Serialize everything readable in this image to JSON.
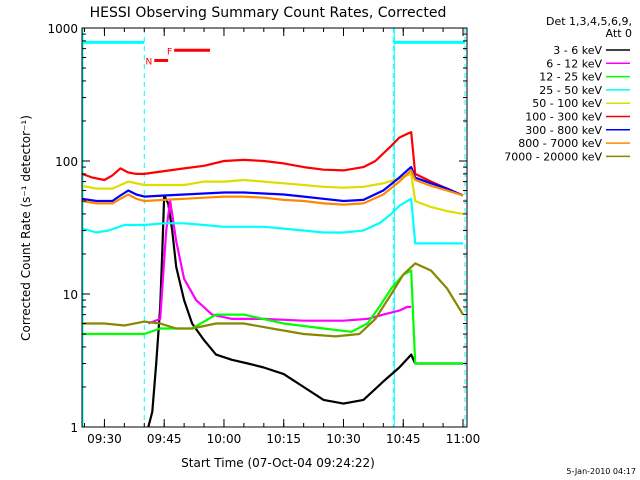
{
  "chart_data": {
    "type": "line",
    "title": "HESSI Observing Summary Count Rates, Corrected",
    "xlabel": "Start Time (07-Oct-04 09:24:22)",
    "ylabel": "Corrected Count Rate (s⁻¹ detector⁻¹)",
    "yscale": "log",
    "ylim": [
      1,
      1000
    ],
    "y_ticks": [
      {
        "value": 1,
        "label": "1"
      },
      {
        "value": 10,
        "label": "10"
      },
      {
        "value": 100,
        "label": "100"
      },
      {
        "value": 1000,
        "label": "1000"
      }
    ],
    "xlim": [
      "09:24:22",
      "11:01:00"
    ],
    "x_ticks": [
      {
        "value": "09:30",
        "label": "09:30"
      },
      {
        "value": "09:45",
        "label": "09:45"
      },
      {
        "value": "10:00",
        "label": "10:00"
      },
      {
        "value": "10:15",
        "label": "10:15"
      },
      {
        "value": "10:30",
        "label": "10:30"
      },
      {
        "value": "10:45",
        "label": "10:45"
      },
      {
        "value": "11:00",
        "label": "11:00"
      }
    ],
    "legend_header": [
      "Det 1,3,4,5,6,9,",
      "Att 0"
    ],
    "legend_placement": "right",
    "footer_date": "5-Jan-2010 04:17",
    "flags": [
      {
        "label": "N",
        "color": "#ff0000",
        "start": "09:42:30",
        "end": "09:46:00",
        "y": 570
      },
      {
        "label": "F",
        "color": "#ff0000",
        "start": "09:47:30",
        "end": "09:56:30",
        "y": 680
      }
    ],
    "night_bars": [
      {
        "start": "09:24:22",
        "end": "09:40:00",
        "y": 780
      },
      {
        "start": "10:42:30",
        "end": "11:00:30",
        "y": 780
      }
    ],
    "night_boundaries": [
      "09:40:00",
      "10:42:30",
      "11:00:30"
    ],
    "solid_vlines": [
      "09:24:22",
      "10:42:30"
    ],
    "series": [
      {
        "name": "3 - 6 keV",
        "color": "#000000",
        "x": [
          "09:24:22",
          "09:40:00",
          "09:41:00",
          "09:42:00",
          "09:43:00",
          "09:44:00",
          "09:44:30",
          "09:45:00",
          "09:46:00",
          "09:47:00",
          "09:48:00",
          "09:50:00",
          "09:52:00",
          "09:55:00",
          "09:58:00",
          "10:02:00",
          "10:06:00",
          "10:10:00",
          "10:15:00",
          "10:20:00",
          "10:25:00",
          "10:30:00",
          "10:35:00",
          "10:40:00",
          "10:44:00",
          "10:47:00",
          "10:48:00",
          "10:52:00",
          "10:56:00",
          "11:00:00"
        ],
        "values": [
          null,
          null,
          1,
          1.3,
          3,
          8,
          20,
          55,
          48,
          30,
          16,
          9,
          6,
          4.5,
          3.5,
          3.2,
          3,
          2.8,
          2.5,
          2,
          1.6,
          1.5,
          1.6,
          2.2,
          2.8,
          3.5,
          3,
          3,
          3,
          3
        ]
      },
      {
        "name": "6 - 12 keV",
        "color": "#ff00ff",
        "x": [
          "09:24:22",
          "09:40:00",
          "09:41:00",
          "09:44:00",
          "09:45:30",
          "09:46:30",
          "09:48:00",
          "09:50:00",
          "09:53:00",
          "09:57:00",
          "10:02:00",
          "10:10:00",
          "10:20:00",
          "10:30:00",
          "10:36:00",
          "10:40:00",
          "10:44:00",
          "10:46:00",
          "10:47:00"
        ],
        "values": [
          null,
          null,
          6,
          6.5,
          30,
          50,
          25,
          13,
          9,
          7,
          6.5,
          6.5,
          6.3,
          6.3,
          6.5,
          7,
          7.5,
          8,
          8
        ]
      },
      {
        "name": "12 - 25 keV",
        "color": "#00ff00",
        "x": [
          "09:24:22",
          "09:30:00",
          "09:38:00",
          "09:40:00",
          "09:44:00",
          "09:48:00",
          "09:52:00",
          "09:58:00",
          "10:05:00",
          "10:15:00",
          "10:25:00",
          "10:32:00",
          "10:36:00",
          "10:39:00",
          "10:42:00",
          "10:45:00",
          "10:47:00",
          "10:48:00",
          "10:52:00",
          "10:56:00",
          "11:00:00"
        ],
        "values": [
          5,
          5,
          5,
          5,
          5.5,
          5.5,
          5.5,
          7,
          7,
          6,
          5.5,
          5.2,
          6,
          8,
          11,
          14,
          15,
          3,
          3,
          3,
          3
        ]
      },
      {
        "name": "25 - 50 keV",
        "color": "#00ffff",
        "x": [
          "09:24:22",
          "09:28:00",
          "09:31:00",
          "09:35:00",
          "09:40:00",
          "09:45:00",
          "09:50:00",
          "09:55:00",
          "10:00:00",
          "10:05:00",
          "10:10:00",
          "10:15:00",
          "10:20:00",
          "10:25:00",
          "10:30:00",
          "10:35:00",
          "10:39:00",
          "10:42:00",
          "10:44:00",
          "10:46:00",
          "10:47:00",
          "10:48:00",
          "10:52:00",
          "10:56:00",
          "11:00:00"
        ],
        "values": [
          31,
          29,
          30,
          33,
          33,
          34,
          34,
          33,
          32,
          32,
          32,
          31,
          30,
          29,
          29,
          30,
          34,
          40,
          46,
          50,
          52,
          24,
          24,
          24,
          24
        ]
      },
      {
        "name": "50 - 100 keV",
        "color": "#dddd00",
        "x": [
          "09:24:22",
          "09:28:00",
          "09:32:00",
          "09:36:00",
          "09:40:00",
          "09:45:00",
          "09:50:00",
          "09:55:00",
          "10:00:00",
          "10:05:00",
          "10:10:00",
          "10:15:00",
          "10:20:00",
          "10:25:00",
          "10:30:00",
          "10:35:00",
          "10:40:00",
          "10:44:00",
          "10:46:00",
          "10:47:00",
          "10:48:00",
          "10:52:00",
          "10:56:00",
          "11:00:00"
        ],
        "values": [
          65,
          62,
          62,
          70,
          66,
          66,
          66,
          70,
          70,
          72,
          70,
          68,
          66,
          64,
          63,
          64,
          68,
          74,
          78,
          80,
          50,
          45,
          42,
          40
        ]
      },
      {
        "name": "100 - 300 keV",
        "color": "#ff0000",
        "x": [
          "09:24:22",
          "09:27:00",
          "09:30:00",
          "09:32:00",
          "09:34:00",
          "09:36:00",
          "09:38:00",
          "09:40:00",
          "09:45:00",
          "09:50:00",
          "09:55:00",
          "10:00:00",
          "10:05:00",
          "10:10:00",
          "10:15:00",
          "10:20:00",
          "10:25:00",
          "10:30:00",
          "10:35:00",
          "10:38:00",
          "10:42:00",
          "10:44:00",
          "10:46:00",
          "10:47:00",
          "10:48:00",
          "10:52:00",
          "10:56:00",
          "11:00:00"
        ],
        "values": [
          80,
          75,
          72,
          78,
          88,
          82,
          80,
          80,
          84,
          88,
          92,
          100,
          102,
          100,
          96,
          90,
          86,
          85,
          90,
          100,
          130,
          150,
          160,
          165,
          80,
          70,
          62,
          55
        ]
      },
      {
        "name": "300 - 800 keV",
        "color": "#0000ff",
        "x": [
          "09:24:22",
          "09:28:00",
          "09:32:00",
          "09:34:00",
          "09:36:00",
          "09:38:00",
          "09:40:00",
          "09:45:00",
          "09:50:00",
          "09:55:00",
          "10:00:00",
          "10:05:00",
          "10:10:00",
          "10:15:00",
          "10:20:00",
          "10:25:00",
          "10:30:00",
          "10:35:00",
          "10:40:00",
          "10:44:00",
          "10:46:00",
          "10:47:00",
          "10:48:00",
          "10:52:00",
          "10:56:00",
          "11:00:00"
        ],
        "values": [
          52,
          50,
          50,
          55,
          60,
          56,
          54,
          55,
          56,
          57,
          58,
          58,
          57,
          56,
          54,
          52,
          50,
          51,
          60,
          75,
          85,
          90,
          75,
          68,
          62,
          55
        ]
      },
      {
        "name": "800 - 7000 keV",
        "color": "#ff8800",
        "x": [
          "09:24:22",
          "09:28:00",
          "09:32:00",
          "09:34:00",
          "09:36:00",
          "09:38:00",
          "09:40:00",
          "09:45:00",
          "09:50:00",
          "09:55:00",
          "10:00:00",
          "10:05:00",
          "10:10:00",
          "10:15:00",
          "10:20:00",
          "10:25:00",
          "10:30:00",
          "10:35:00",
          "10:40:00",
          "10:44:00",
          "10:46:00",
          "10:47:00",
          "10:48:00",
          "10:52:00",
          "10:56:00",
          "11:00:00"
        ],
        "values": [
          50,
          48,
          48,
          52,
          56,
          52,
          50,
          51,
          52,
          53,
          54,
          54,
          53,
          51,
          50,
          48,
          47,
          48,
          56,
          70,
          80,
          85,
          72,
          65,
          60,
          55
        ]
      },
      {
        "name": "7000 - 20000 keV",
        "color": "#888800",
        "x": [
          "09:24:22",
          "09:30:00",
          "09:35:00",
          "09:40:00",
          "09:44:00",
          "09:48:00",
          "09:52:00",
          "09:58:00",
          "10:05:00",
          "10:12:00",
          "10:20:00",
          "10:28:00",
          "10:34:00",
          "10:38:00",
          "10:42:00",
          "10:45:00",
          "10:48:00",
          "10:52:00",
          "10:56:00",
          "11:00:00"
        ],
        "values": [
          6,
          6,
          5.8,
          6.2,
          6,
          5.5,
          5.5,
          6,
          6,
          5.5,
          5,
          4.8,
          5,
          6.5,
          10,
          14,
          17,
          15,
          11,
          7
        ]
      }
    ]
  }
}
